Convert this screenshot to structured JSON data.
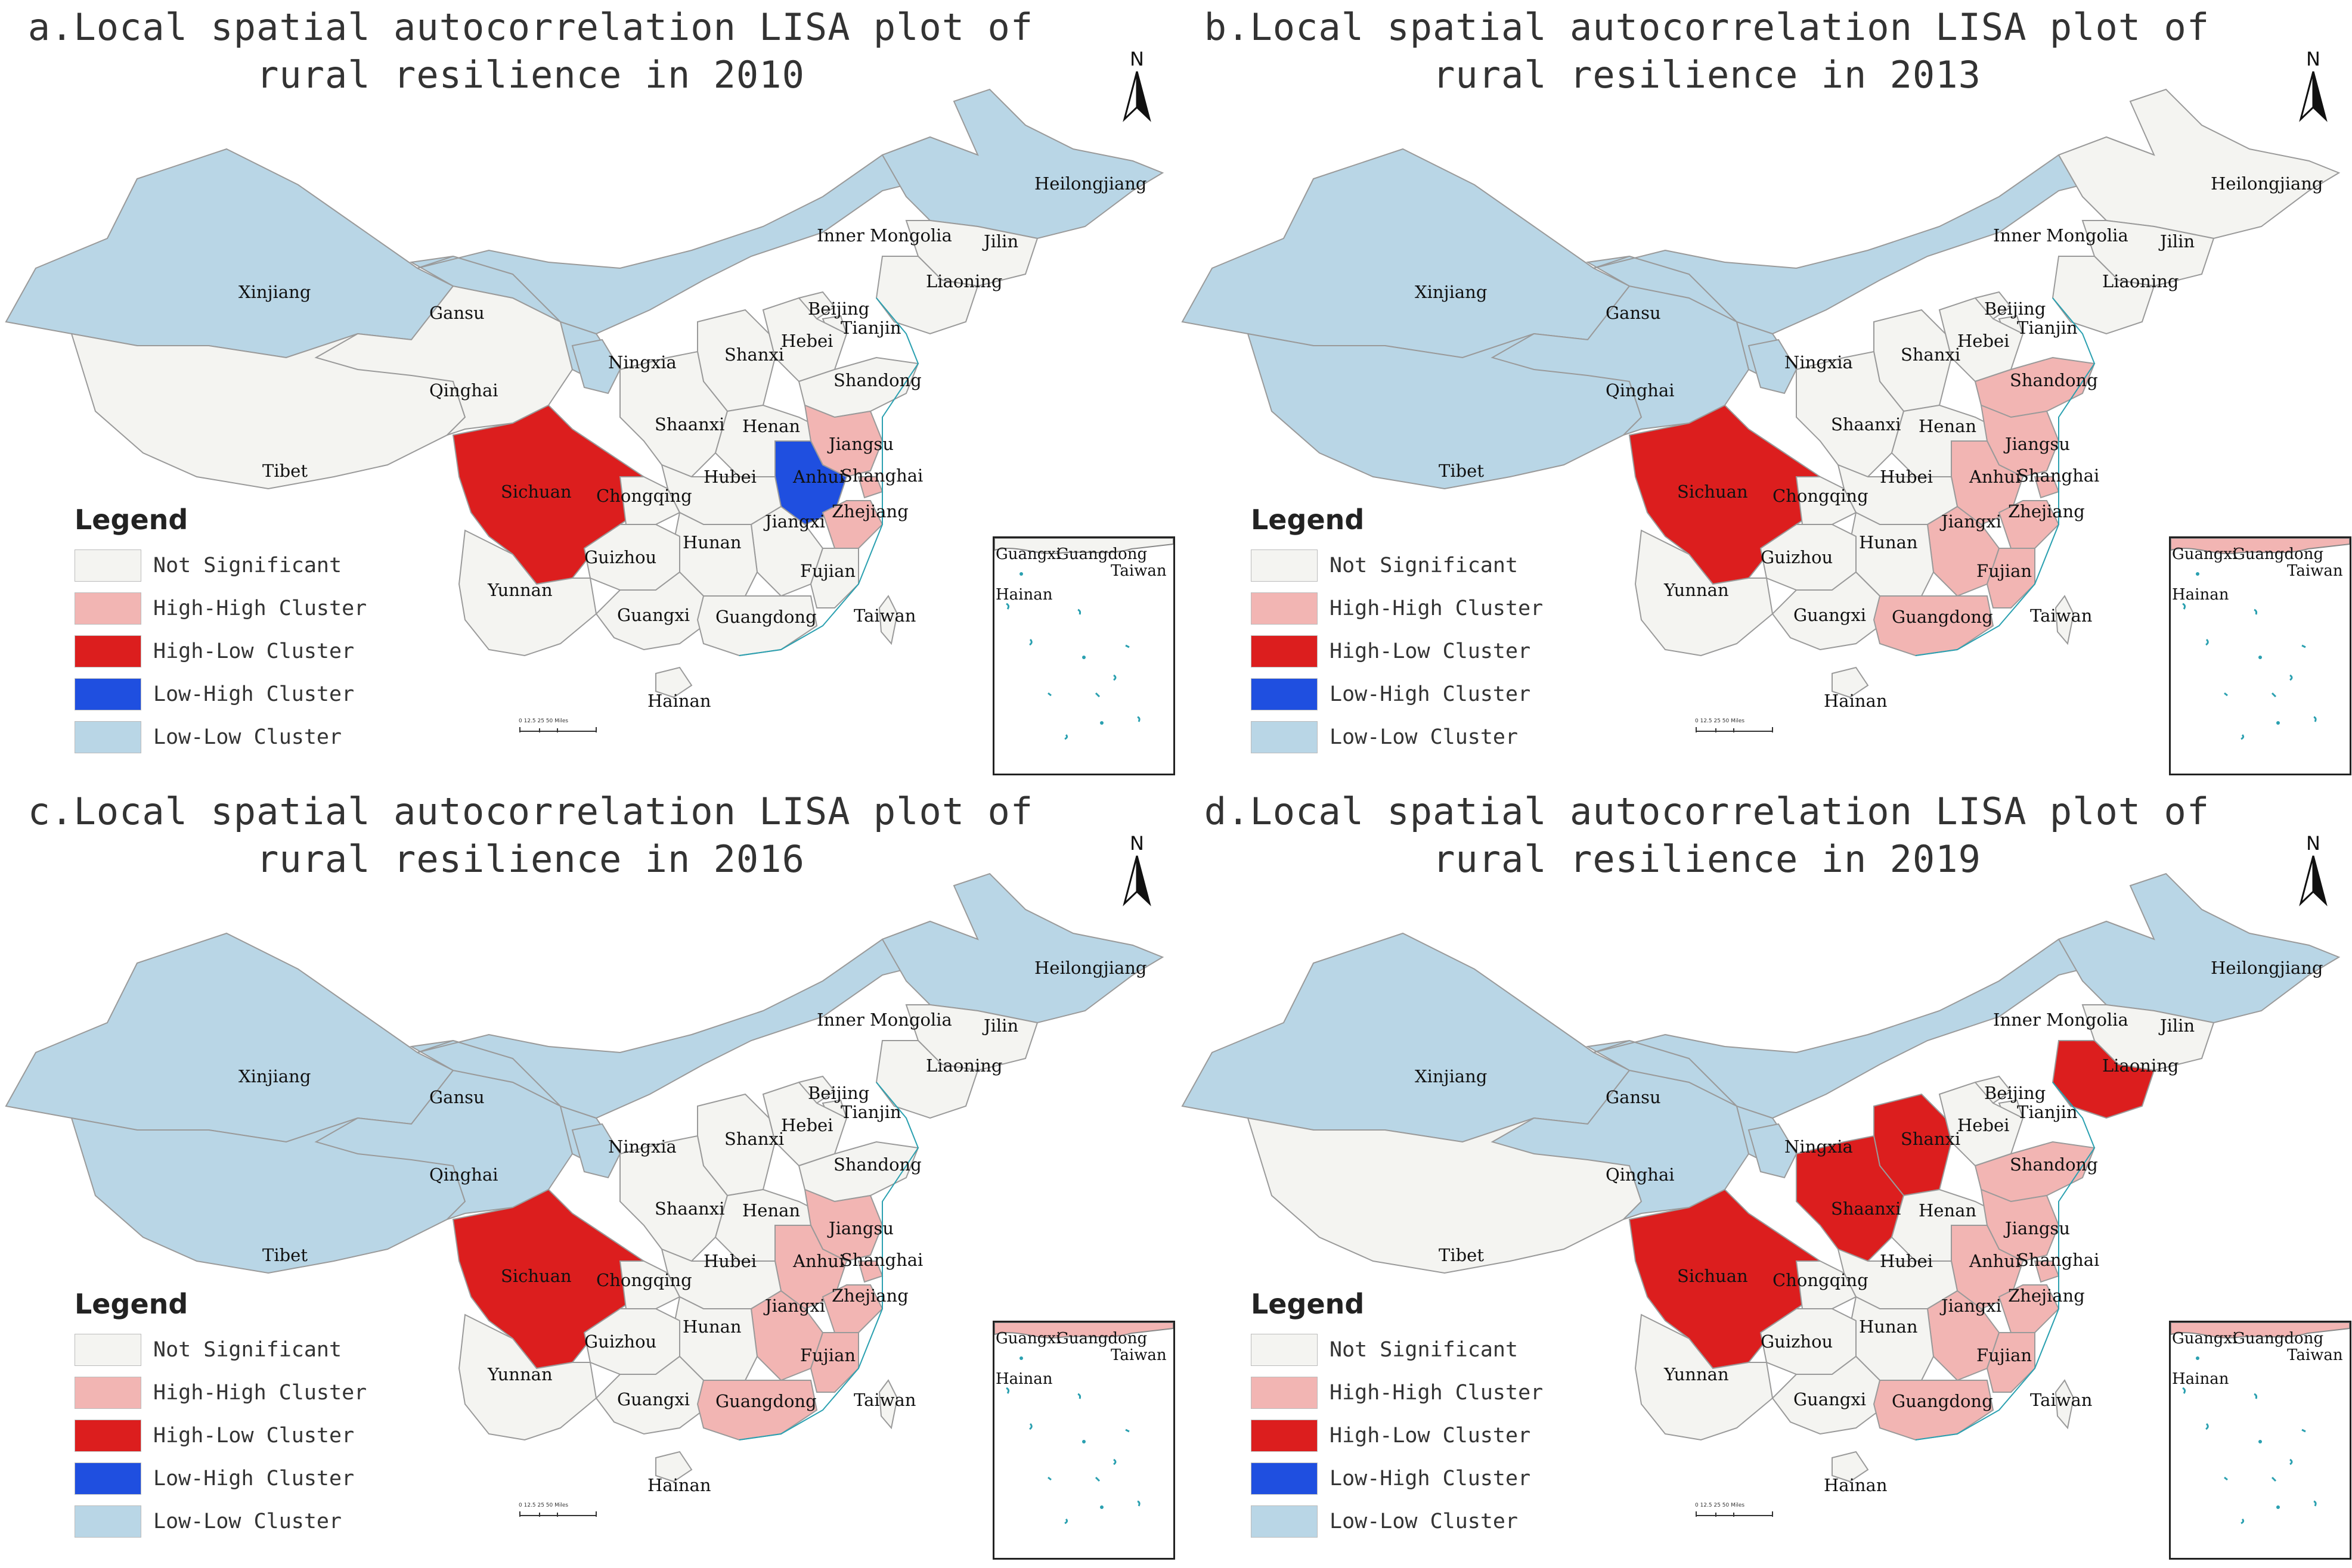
{
  "panels": [
    {
      "id": "a",
      "title_line1": "a.Local spatial autocorrelation LISA plot of",
      "title_line2": "rural resilience in 2010",
      "status": {
        "Heilongjiang": "LL",
        "Inner Mongolia": "LL",
        "Jilin": "NS",
        "Liaoning": "NS",
        "Xinjiang": "LL",
        "Gansu": "LL",
        "Ningxia": "LL",
        "Qinghai": "NS",
        "Tibet": "NS",
        "Beijing": "NS",
        "Tianjin": "NS",
        "Hebei": "NS",
        "Shanxi": "NS",
        "Shandong": "NS",
        "Shaanxi": "NS",
        "Henan": "NS",
        "Jiangsu": "HH",
        "Anhui": "LH",
        "Shanghai": "HH",
        "Sichuan": "HL",
        "Chongqing": "NS",
        "Hubei": "NS",
        "Zhejiang": "HH",
        "Jiangxi": "NS",
        "Hunan": "NS",
        "Guizhou": "NS",
        "Yunnan": "NS",
        "Guangxi": "NS",
        "Guangdong": "NS",
        "Fujian": "NS",
        "Taiwan": "NS",
        "Hainan": "NS"
      }
    },
    {
      "id": "b",
      "title_line1": "b.Local spatial autocorrelation LISA plot of",
      "title_line2": "rural resilience in 2013",
      "status": {
        "Heilongjiang": "NS",
        "Inner Mongolia": "LL",
        "Jilin": "NS",
        "Liaoning": "NS",
        "Xinjiang": "LL",
        "Gansu": "LL",
        "Ningxia": "LL",
        "Qinghai": "LL",
        "Tibet": "LL",
        "Beijing": "NS",
        "Tianjin": "NS",
        "Hebei": "NS",
        "Shanxi": "NS",
        "Shandong": "HH",
        "Shaanxi": "NS",
        "Henan": "NS",
        "Jiangsu": "HH",
        "Anhui": "HH",
        "Shanghai": "HH",
        "Sichuan": "HL",
        "Chongqing": "NS",
        "Hubei": "NS",
        "Zhejiang": "HH",
        "Jiangxi": "HH",
        "Hunan": "NS",
        "Guizhou": "NS",
        "Yunnan": "NS",
        "Guangxi": "NS",
        "Guangdong": "HH",
        "Fujian": "HH",
        "Taiwan": "NS",
        "Hainan": "NS"
      }
    },
    {
      "id": "c",
      "title_line1": "c.Local spatial autocorrelation LISA plot of",
      "title_line2": "rural resilience in 2016",
      "status": {
        "Heilongjiang": "LL",
        "Inner Mongolia": "LL",
        "Jilin": "NS",
        "Liaoning": "NS",
        "Xinjiang": "LL",
        "Gansu": "LL",
        "Ningxia": "LL",
        "Qinghai": "LL",
        "Tibet": "LL",
        "Beijing": "NS",
        "Tianjin": "NS",
        "Hebei": "NS",
        "Shanxi": "NS",
        "Shandong": "NS",
        "Shaanxi": "NS",
        "Henan": "NS",
        "Jiangsu": "HH",
        "Anhui": "HH",
        "Shanghai": "HH",
        "Sichuan": "HL",
        "Chongqing": "NS",
        "Hubei": "NS",
        "Zhejiang": "HH",
        "Jiangxi": "HH",
        "Hunan": "NS",
        "Guizhou": "NS",
        "Yunnan": "NS",
        "Guangxi": "NS",
        "Guangdong": "HH",
        "Fujian": "HH",
        "Taiwan": "NS",
        "Hainan": "NS"
      }
    },
    {
      "id": "d",
      "title_line1": "d.Local spatial autocorrelation LISA plot of",
      "title_line2": "rural resilience in 2019",
      "status": {
        "Heilongjiang": "LL",
        "Inner Mongolia": "LL",
        "Jilin": "NS",
        "Liaoning": "HL",
        "Xinjiang": "LL",
        "Gansu": "LL",
        "Ningxia": "LL",
        "Qinghai": "LL",
        "Tibet": "NS",
        "Beijing": "NS",
        "Tianjin": "NS",
        "Hebei": "NS",
        "Shanxi": "HL",
        "Shandong": "HH",
        "Shaanxi": "HL",
        "Henan": "NS",
        "Jiangsu": "HH",
        "Anhui": "HH",
        "Shanghai": "HH",
        "Sichuan": "HL",
        "Chongqing": "NS",
        "Hubei": "NS",
        "Zhejiang": "HH",
        "Jiangxi": "HH",
        "Hunan": "NS",
        "Guizhou": "NS",
        "Yunnan": "NS",
        "Guangxi": "NS",
        "Guangdong": "HH",
        "Fujian": "HH",
        "Taiwan": "NS",
        "Hainan": "NS"
      }
    }
  ],
  "legend": {
    "title": "Legend",
    "items": [
      {
        "key": "NS",
        "label": "Not Significant",
        "color": "#f4f4f1"
      },
      {
        "key": "HH",
        "label": "High-High Cluster",
        "color": "#f2b5b3"
      },
      {
        "key": "HL",
        "label": "High-Low Cluster",
        "color": "#dc1e1e"
      },
      {
        "key": "LH",
        "label": "Low-High Cluster",
        "color": "#1f4fe0"
      },
      {
        "key": "LL",
        "label": "Low-Low Cluster",
        "color": "#b9d6e6"
      }
    ]
  },
  "north_label": "N",
  "inset_labels": {
    "guangxi": "Guangxi",
    "guangdong": "Guangdong",
    "taiwan": "Taiwan",
    "hainan": "Hainan"
  },
  "scale_label": "0  12.5 25      50 Miles"
}
